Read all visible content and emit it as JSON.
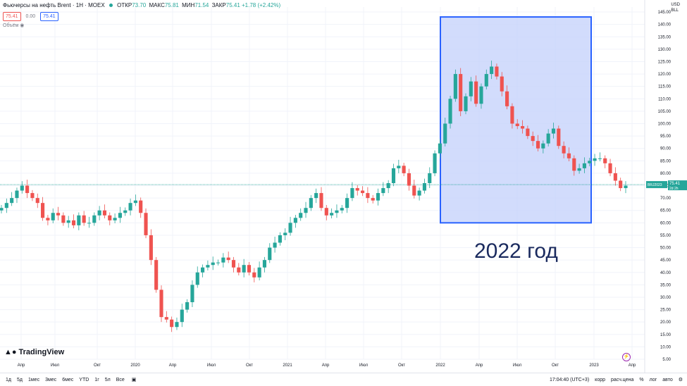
{
  "header": {
    "title": "Фьючерсы на нефть Brent · 1Н · MOEX",
    "ohlc": [
      {
        "label": "ОТКР",
        "value": "73.70"
      },
      {
        "label": "МАКС",
        "value": "75.81"
      },
      {
        "label": "МИН",
        "value": "71.54"
      },
      {
        "label": "ЗАКР",
        "value": "75.41 +1.78 (+2.42%)"
      }
    ],
    "bid": "75.41",
    "spread": "0.00",
    "ask": "75.41",
    "volume_label": "Объём"
  },
  "price_axis": {
    "currency": "USD",
    "unit": "BLL",
    "ticks": [
      "145.00",
      "140.00",
      "135.00",
      "130.00",
      "125.00",
      "120.00",
      "115.00",
      "110.00",
      "105.00",
      "100.00",
      "95.00",
      "90.00",
      "85.00",
      "80.00",
      "75.00",
      "70.00",
      "65.00",
      "60.00",
      "55.00",
      "50.00",
      "45.00",
      "40.00",
      "35.00",
      "30.00",
      "25.00",
      "20.00",
      "15.00",
      "10.00",
      "5.00"
    ],
    "last_symbol": "BRJ2023",
    "last_price": "75.41",
    "countdown": "2d 2h"
  },
  "time_axis": {
    "ticks": [
      "Апр",
      "Июл",
      "Окт",
      "2020",
      "Апр",
      "Июл",
      "Окт",
      "2021",
      "Апр",
      "Июл",
      "Окт",
      "2022",
      "Апр",
      "Июл",
      "Окт",
      "2023",
      "Апр"
    ]
  },
  "annotation": {
    "text": "2022 год"
  },
  "brand": {
    "name": "TradingView"
  },
  "bottom": {
    "timeframes": [
      "1д",
      "5д",
      "1мес",
      "3мес",
      "6мес",
      "YTD",
      "1г",
      "5л",
      "Все"
    ],
    "clock": "17:04:40 (UTC+3)",
    "right_buttons": [
      "корр",
      "расч.цена",
      "%",
      "лог",
      "авто"
    ]
  },
  "colors": {
    "up": "#26a69a",
    "down": "#ef5350",
    "highlight_fill": "#c7d3fb",
    "highlight_border": "#2962ff",
    "last_price_line": "#26a69a"
  },
  "chart_data": {
    "type": "candlestick",
    "title": "Фьючерсы на нефть Brent · 1Н · MOEX",
    "x_ticks": [
      "Апр",
      "Июл",
      "Окт",
      "2020",
      "Апр",
      "Июл",
      "Окт",
      "2021",
      "Апр",
      "Июл",
      "Окт",
      "2022",
      "Апр",
      "Июл",
      "Окт",
      "2023",
      "Апр"
    ],
    "ylim": [
      5,
      147
    ],
    "y_ticks": [
      145,
      140,
      135,
      130,
      125,
      120,
      115,
      110,
      105,
      100,
      95,
      90,
      85,
      80,
      75,
      70,
      65,
      60,
      55,
      50,
      45,
      40,
      35,
      30,
      25,
      20,
      15,
      10,
      5
    ],
    "close_path": [
      66,
      68,
      70,
      73,
      75,
      72,
      70,
      68,
      62,
      61,
      64,
      63,
      60,
      61,
      59,
      63,
      60,
      60,
      63,
      65,
      63,
      61,
      62,
      64,
      65,
      68,
      69,
      64,
      55,
      45,
      33,
      22,
      21,
      18,
      20,
      25,
      28,
      35,
      40,
      42,
      43,
      44,
      44,
      46,
      45,
      42,
      40,
      43,
      40,
      38,
      42,
      45,
      50,
      52,
      55,
      56,
      60,
      62,
      64,
      66,
      70,
      72,
      66,
      63,
      64,
      65,
      66,
      70,
      74,
      73,
      72,
      70,
      69,
      72,
      74,
      76,
      82,
      83,
      80,
      75,
      71,
      73,
      76,
      80,
      88,
      92,
      100,
      110,
      120,
      105,
      111,
      117,
      108,
      115,
      120,
      123,
      119,
      113,
      107,
      100,
      99,
      98,
      95,
      93,
      90,
      92,
      96,
      98,
      91,
      88,
      86,
      81,
      82,
      84,
      85,
      86,
      86,
      84,
      80,
      77,
      74,
      75
    ],
    "last_close": 75.41,
    "highlight": {
      "label": "2022 год",
      "period": "2022",
      "ylim": [
        60,
        143
      ]
    }
  }
}
